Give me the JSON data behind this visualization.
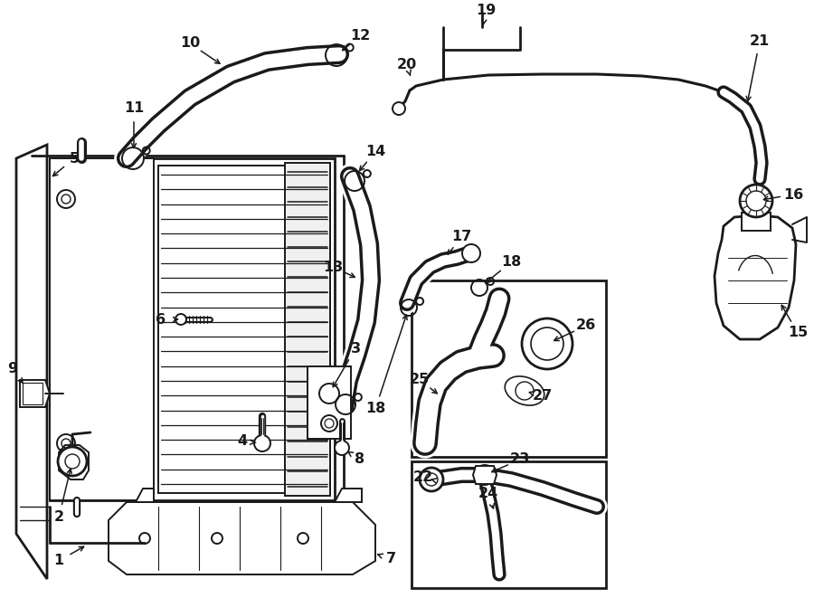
{
  "bg_color": "#ffffff",
  "line_color": "#1a1a1a",
  "fig_width": 9.0,
  "fig_height": 6.61,
  "dpi": 100,
  "label_fontsize": 11.5,
  "lw_hose": 6.0,
  "lw_main": 1.4,
  "lw_thick": 2.0
}
